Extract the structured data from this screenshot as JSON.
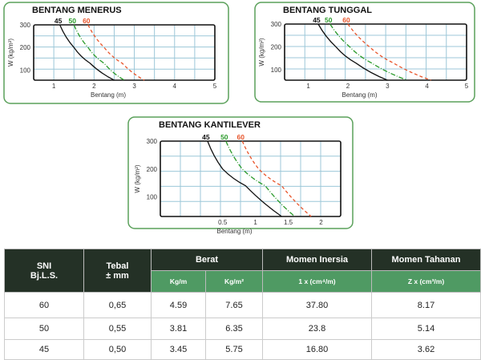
{
  "chart_data": [
    {
      "type": "line",
      "title": "BENTANG MENERUS",
      "xlabel": "Bentang (m)",
      "ylabel": "W (kg/m²)",
      "xlim": [
        0.5,
        5
      ],
      "ylim": [
        55,
        300
      ],
      "xticks": [
        "1",
        "2",
        "3",
        "4",
        "5"
      ],
      "xtick_values": [
        1,
        2,
        3,
        4,
        5
      ],
      "yticks": [
        "100",
        "200",
        "300"
      ],
      "ytick_values": [
        100,
        200,
        300
      ],
      "series": [
        {
          "name": "45",
          "color": "#111111",
          "dash": "",
          "points": [
            [
              1.15,
              300
            ],
            [
              1.5,
              200
            ],
            [
              1.9,
              130
            ],
            [
              2.5,
              55
            ]
          ]
        },
        {
          "name": "50",
          "color": "#2a9a2a",
          "dash": "6 2 1 2",
          "points": [
            [
              1.5,
              300
            ],
            [
              1.85,
              200
            ],
            [
              2.25,
              130
            ],
            [
              2.75,
              55
            ]
          ]
        },
        {
          "name": "60",
          "color": "#e8542a",
          "dash": "4 3",
          "points": [
            [
              1.85,
              300
            ],
            [
              2.25,
              200
            ],
            [
              2.7,
              130
            ],
            [
              3.25,
              55
            ]
          ]
        }
      ]
    },
    {
      "type": "line",
      "title": "BENTANG TUNGGAL",
      "xlabel": "Bentang (m)",
      "ylabel": "W (kg/m²)",
      "xlim": [
        0.4,
        5
      ],
      "ylim": [
        55,
        300
      ],
      "xticks": [
        "1",
        "2",
        "3",
        "4",
        "5"
      ],
      "xtick_values": [
        1,
        2,
        3,
        4,
        5
      ],
      "yticks": [
        "100",
        "200",
        "300"
      ],
      "ytick_values": [
        100,
        200,
        300
      ],
      "series": [
        {
          "name": "45",
          "color": "#111111",
          "dash": "",
          "points": [
            [
              1.25,
              300
            ],
            [
              1.7,
              200
            ],
            [
              2.2,
              130
            ],
            [
              3.0,
              55
            ]
          ]
        },
        {
          "name": "50",
          "color": "#2a9a2a",
          "dash": "6 2 1 2",
          "points": [
            [
              1.55,
              300
            ],
            [
              2.05,
              200
            ],
            [
              2.6,
              130
            ],
            [
              3.5,
              55
            ]
          ]
        },
        {
          "name": "60",
          "color": "#e8542a",
          "dash": "4 3",
          "points": [
            [
              2.0,
              300
            ],
            [
              2.55,
              200
            ],
            [
              3.15,
              130
            ],
            [
              4.1,
              55
            ]
          ]
        }
      ]
    },
    {
      "type": "line",
      "title": "BENTANG KANTILEVER",
      "xlabel": "Bentang (m)",
      "ylabel": "W (kg/m²)",
      "xlim": [
        -0.45,
        2.3
      ],
      "ylim": [
        30,
        300
      ],
      "xticks": [
        "0.5",
        "1",
        "1.5",
        "2"
      ],
      "xtick_values": [
        0.5,
        1,
        1.5,
        2
      ],
      "yticks": [
        "100",
        "200",
        "300"
      ],
      "ytick_values": [
        100,
        200,
        300
      ],
      "series": [
        {
          "name": "45",
          "color": "#111111",
          "dash": "",
          "points": [
            [
              0.27,
              300
            ],
            [
              0.5,
              200
            ],
            [
              0.85,
              140
            ],
            [
              1.4,
              30
            ]
          ]
        },
        {
          "name": "50",
          "color": "#2a9a2a",
          "dash": "6 2 1 2",
          "points": [
            [
              0.55,
              300
            ],
            [
              0.8,
              200
            ],
            [
              1.15,
              140
            ],
            [
              1.6,
              30
            ]
          ]
        },
        {
          "name": "60",
          "color": "#e8542a",
          "dash": "4 3",
          "points": [
            [
              0.8,
              300
            ],
            [
              1.05,
              200
            ],
            [
              1.4,
              140
            ],
            [
              1.85,
              30
            ]
          ]
        }
      ]
    }
  ],
  "table": {
    "headers": {
      "sni": "SNI",
      "sni2": "Bj.L.S.",
      "tebal": "Tebal",
      "tebal2": "± mm",
      "berat": "Berat",
      "inersia": "Momen Inersia",
      "tahanan": "Momen Tahanan"
    },
    "subheaders": {
      "kgm": "Kg/m",
      "kgm2": "Kg/m²",
      "ix": "1 x (cm⁴/m)",
      "zx": "Z x (cm³/m)"
    },
    "rows": [
      [
        "60",
        "0,65",
        "4.59",
        "7.65",
        "37.80",
        "8.17"
      ],
      [
        "50",
        "0,55",
        "3.81",
        "6.35",
        "23.8",
        "5.14"
      ],
      [
        "45",
        "0,50",
        "3.45",
        "5.75",
        "16.80",
        "3.62"
      ]
    ]
  }
}
